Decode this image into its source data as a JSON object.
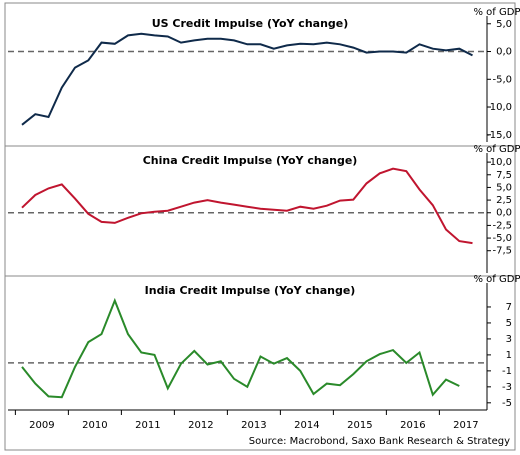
{
  "source": "Source: Macrobond, Saxo Bank Research & Strategy",
  "chart_data": [
    {
      "type": "line",
      "title": "US Credit Impulse (YoY change)",
      "ylabel": "% of GDP",
      "color": "#0f2a4a",
      "hline": 0,
      "ylim": [
        -16.3,
        6.4
      ],
      "yticks": [
        {
          "value": 5,
          "label": "5,0"
        },
        {
          "value": 0,
          "label": "0,0"
        },
        {
          "value": -5,
          "label": "-5,0"
        },
        {
          "value": -10,
          "label": "-10,0"
        },
        {
          "value": -15,
          "label": "-15,0"
        }
      ],
      "values": [
        -13.2,
        -11.3,
        -11.8,
        -6.5,
        -2.9,
        -1.6,
        1.6,
        1.4,
        2.9,
        3.2,
        2.9,
        2.7,
        1.6,
        2.0,
        2.3,
        2.3,
        2.0,
        1.3,
        1.3,
        0.5,
        1.1,
        1.4,
        1.3,
        1.6,
        1.3,
        0.7,
        -0.2,
        0.0,
        0.0,
        -0.2,
        1.3,
        0.5,
        0.2,
        0.5,
        -0.7
      ]
    },
    {
      "type": "line",
      "title": "China Credit Impulse (YoY change)",
      "ylabel": "% of GDP",
      "color": "#c0152f",
      "hline": 0,
      "ylim": [
        -11.9,
        11.8
      ],
      "yticks": [
        {
          "value": 10,
          "label": "10,0"
        },
        {
          "value": 7.5,
          "label": "7,5"
        },
        {
          "value": 5,
          "label": "5,0"
        },
        {
          "value": 2.5,
          "label": "2,5"
        },
        {
          "value": 0,
          "label": "0,0"
        },
        {
          "value": -2.5,
          "label": "-2,5"
        },
        {
          "value": -5,
          "label": "-5,0"
        },
        {
          "value": -7.5,
          "label": "-7,5"
        }
      ],
      "values": [
        1.0,
        3.5,
        4.8,
        5.6,
        2.8,
        -0.2,
        -1.8,
        -2.0,
        -1.0,
        -0.1,
        0.2,
        0.4,
        1.2,
        2.0,
        2.5,
        2.0,
        1.6,
        1.2,
        0.8,
        0.6,
        0.4,
        1.2,
        0.8,
        1.4,
        2.4,
        2.6,
        5.8,
        7.8,
        8.7,
        8.2,
        4.6,
        1.5,
        -3.3,
        -5.6,
        -6.0
      ]
    },
    {
      "type": "line",
      "title": "India Credit Impulse (YoY change)",
      "ylabel": "% of GDP",
      "color": "#2a8a2a",
      "hline": 0,
      "ylim": [
        -5.9,
        10
      ],
      "yticks": [
        7,
        5,
        3,
        1,
        -1,
        -3,
        -5
      ],
      "categories": [
        null,
        "2009",
        null,
        null,
        null,
        "2010",
        null,
        null,
        null,
        "2011",
        null,
        null,
        null,
        "2012",
        null,
        null,
        null,
        "2013",
        null,
        null,
        null,
        "2014",
        null,
        null,
        null,
        "2015",
        null,
        null,
        null,
        "2016",
        null,
        null,
        null,
        "2017",
        null
      ],
      "values": [
        -0.5,
        -2.6,
        -4.2,
        -4.3,
        -0.5,
        2.6,
        3.6,
        7.8,
        3.6,
        1.3,
        1.0,
        -3.2,
        -0.1,
        1.5,
        -0.2,
        0.2,
        -2.0,
        -3.0,
        0.8,
        -0.1,
        0.6,
        -1.0,
        -3.9,
        -2.6,
        -2.8,
        -1.4,
        0.2,
        1.1,
        1.6,
        0.0,
        1.3,
        -4.0,
        -2.1,
        -2.9,
        null
      ]
    }
  ]
}
